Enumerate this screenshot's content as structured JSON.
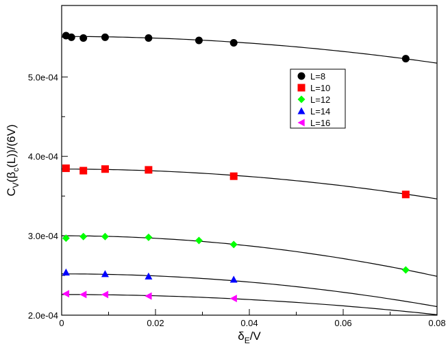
{
  "chart_data": {
    "type": "scatter",
    "xlabel": {
      "main": "δ",
      "sub": "E",
      "rest": "/V"
    },
    "ylabel": {
      "pre": "C",
      "sub1": "V",
      "mid": "(β",
      "sub2": "c",
      "post": "(L))/(6V)"
    },
    "xlim": [
      0,
      0.08
    ],
    "ylim": [
      0.0002,
      0.00059
    ],
    "x_ticks": [
      {
        "value": 0,
        "label": "0"
      },
      {
        "value": 0.02,
        "label": "0.02"
      },
      {
        "value": 0.04,
        "label": "0.04"
      },
      {
        "value": 0.06,
        "label": "0.06"
      },
      {
        "value": 0.08,
        "label": "0.08"
      }
    ],
    "y_ticks": [
      {
        "value": 0.0002,
        "label": "2.0e-04"
      },
      {
        "value": 0.0003,
        "label": "3.0e-04"
      },
      {
        "value": 0.0004,
        "label": "4.0e-04"
      },
      {
        "value": 0.0005,
        "label": "5.0e-04"
      }
    ],
    "grid": false,
    "legend_position": "upper-right",
    "series": [
      {
        "name": "L=8",
        "marker": "circle",
        "color": "#000000",
        "x": [
          0.00093,
          0.00208,
          0.00463,
          0.00926,
          0.01852,
          0.02926,
          0.03667,
          0.07333
        ],
        "y": [
          0.000552,
          0.00055,
          0.000549,
          0.00055,
          0.000549,
          0.000546,
          0.000543,
          0.000523
        ],
        "fit": {
          "a": 0.000551,
          "b": -0.00525
        }
      },
      {
        "name": "L=10",
        "marker": "square",
        "color": "#ff0000",
        "x": [
          0.00093,
          0.00463,
          0.00926,
          0.01852,
          0.03667,
          0.07333
        ],
        "y": [
          0.000385,
          0.000382,
          0.000384,
          0.000383,
          0.000375,
          0.000352
        ],
        "fit": {
          "a": 0.000384,
          "b": -0.00587
        }
      },
      {
        "name": "L=12",
        "marker": "diamond",
        "color": "#00ff00",
        "x": [
          0.00093,
          0.00463,
          0.00926,
          0.01852,
          0.02926,
          0.03667,
          0.07333
        ],
        "y": [
          0.000297,
          0.000299,
          0.000299,
          0.000298,
          0.000294,
          0.000289,
          0.000257
        ],
        "fit": {
          "a": 0.0003,
          "b": -0.00798
        }
      },
      {
        "name": "L=14",
        "marker": "triangle-up",
        "color": "#0000ff",
        "x": [
          0.00093,
          0.00926,
          0.01852,
          0.03667
        ],
        "y": [
          0.000254,
          0.000252,
          0.000249,
          0.000245
        ],
        "fit": {
          "a": 0.000252,
          "b": -0.00644
        }
      },
      {
        "name": "L=16",
        "marker": "triangle-left",
        "color": "#ff00ff",
        "x": [
          0.00093,
          0.00463,
          0.00926,
          0.01852,
          0.03667
        ],
        "y": [
          0.000227,
          0.000226,
          0.000226,
          0.000224,
          0.000221
        ],
        "fit": {
          "a": 0.000226,
          "b": -0.00397
        }
      }
    ]
  }
}
